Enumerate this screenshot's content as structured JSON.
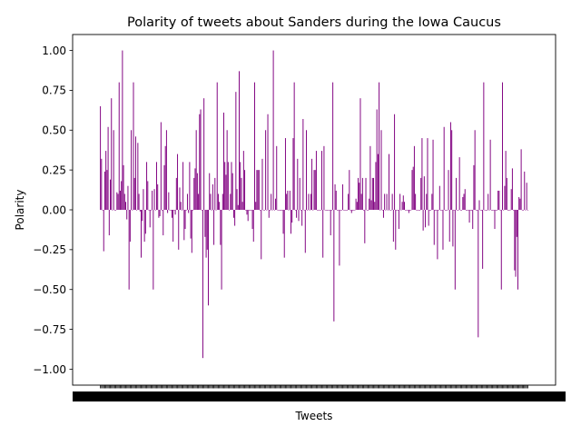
{
  "chart_data": {
    "type": "bar",
    "title": "Polarity of tweets about Sanders during the Iowa Caucus",
    "xlabel": "Tweets",
    "ylabel": "Polarity",
    "ylim": [
      -1.1,
      1.1
    ],
    "yticks": [
      "−1.00",
      "−0.75",
      "−0.50",
      "−0.25",
      "0.00",
      "0.25",
      "0.50",
      "0.75",
      "1.00"
    ],
    "grid": false,
    "legend": "none",
    "bar_color": "#800080",
    "series": [
      {
        "values": [
          0.65,
          0.32,
          0.0,
          -0.26,
          0.24,
          0.37,
          0.25,
          0.52,
          -0.16,
          0.19,
          0.7,
          0.0,
          0.5,
          0.0,
          0.0,
          0.11,
          0.1,
          0.8,
          0.12,
          0.18,
          1.0,
          0.28,
          0.1,
          0.05,
          -0.06,
          0.15,
          -0.5,
          -0.2,
          0.5,
          0.0,
          0.8,
          0.2,
          0.46,
          0.0,
          0.42,
          0.1,
          -0.01,
          -0.3,
          -0.07,
          0.13,
          -0.2,
          -0.15,
          0.3,
          0.18,
          0.0,
          -0.11,
          0.0,
          0.12,
          -0.5,
          0.13,
          0.0,
          0.3,
          0.16,
          -0.05,
          -0.04,
          0.55,
          0.0,
          -0.16,
          0.28,
          0.4,
          0.5,
          -0.02,
          0.11,
          0.0,
          0.0,
          -0.05,
          -0.2,
          0.0,
          -0.03,
          0.2,
          0.35,
          -0.25,
          0.14,
          0.05,
          0.0,
          0.3,
          -0.19,
          -0.12,
          0.0,
          0.1,
          -0.02,
          0.3,
          -0.18,
          -0.27,
          0.0,
          0.2,
          0.26,
          0.5,
          0.23,
          0.1,
          0.6,
          0.63,
          0.0,
          -0.93,
          0.7,
          -0.17,
          -0.3,
          -0.25,
          -0.6,
          0.23,
          0.1,
          0.0,
          0.16,
          -0.22,
          0.2,
          0.0,
          0.8,
          0.1,
          0.05,
          -0.22,
          -0.5,
          0.1,
          0.61,
          0.3,
          0.22,
          0.5,
          0.3,
          0.0,
          0.1,
          0.3,
          0.23,
          -0.05,
          -0.1,
          0.74,
          0.13,
          0.03,
          0.87,
          0.3,
          0.2,
          0.05,
          0.37,
          0.25,
          0.0,
          -0.03,
          -0.07,
          0.0,
          0.0,
          0.0,
          -0.12,
          -0.2,
          0.8,
          0.05,
          0.25,
          0.25,
          0.25,
          0.0,
          -0.31,
          0.32,
          0.0,
          0.0,
          0.5,
          0.0,
          0.6,
          -0.05,
          0.0,
          0.1,
          0.0,
          1.0,
          0.0,
          0.07,
          0.4,
          0.0,
          0.0,
          0.0,
          0.0,
          0.0,
          -0.15,
          -0.3,
          0.45,
          0.1,
          0.12,
          0.0,
          0.12,
          -0.15,
          -0.08,
          0.45,
          0.8,
          0.0,
          -0.05,
          0.32,
          -0.07,
          0.2,
          0.0,
          -0.1,
          0.57,
          0.0,
          -0.27,
          0.5,
          0.0,
          0.1,
          0.0,
          0.1,
          0.32,
          0.0,
          0.25,
          0.25,
          0.37,
          0.0,
          0.0,
          0.0,
          0.0,
          0.37,
          -0.3,
          0.4,
          0.0,
          0.0,
          0.0,
          0.0,
          0.0,
          -0.16,
          0.0,
          0.8,
          -0.7,
          0.16,
          0.12,
          0.0,
          0.0,
          -0.35,
          0.0,
          0.0,
          0.16,
          0.0,
          0.0,
          0.0,
          0.0,
          0.1,
          0.25,
          0.0,
          -0.02,
          0.0,
          0.0,
          0.0,
          0.07,
          0.05,
          0.2,
          0.17,
          0.7,
          0.1,
          0.2,
          0.0,
          -0.21,
          0.2,
          0.0,
          0.0,
          0.07,
          0.4,
          0.06,
          0.2,
          0.2,
          0.05,
          0.3,
          0.63,
          0.35,
          0.8,
          0.0,
          0.5,
          0.0,
          -0.05,
          0.1,
          0.0,
          0.1,
          0.0,
          0.35,
          0.0,
          0.0,
          0.1,
          -0.2,
          0.6,
          -0.25,
          0.0,
          0.0,
          -0.12,
          0.1,
          0.0,
          0.05,
          0.09,
          0.05,
          0.0,
          0.0,
          0.0,
          -0.02,
          0.0,
          0.0,
          0.25,
          0.27,
          0.4,
          0.1,
          0.0,
          0.0,
          0.0,
          0.0,
          0.2,
          0.45,
          -0.13,
          0.21,
          -0.11,
          0.1,
          0.45,
          -0.1,
          0.0,
          0.0,
          0.1,
          0.44,
          -0.22,
          0.0,
          0.0,
          -0.31,
          0.0,
          0.15,
          0.0,
          0.0,
          -0.25,
          0.52,
          0.0,
          0.0,
          0.0,
          0.25,
          -0.2,
          0.55,
          0.5,
          -0.23,
          0.0,
          -0.5,
          0.2,
          0.0,
          0.0,
          0.33,
          0.0,
          0.0,
          0.08,
          0.1,
          0.13,
          0.0,
          0.0,
          0.0,
          -0.08,
          0.0,
          0.0,
          -0.12,
          0.28,
          0.5,
          0.0,
          0.0,
          -0.8,
          0.06,
          0.0,
          0.0,
          -0.37,
          0.8,
          0.0,
          0.0,
          0.0,
          0.1,
          0.0,
          0.44,
          0.0,
          0.0,
          0.0,
          -0.12,
          0.0,
          0.0,
          0.12,
          0.12,
          0.0,
          -0.5,
          0.8,
          0.0,
          0.15,
          0.37,
          0.2,
          0.0,
          0.0,
          0.0,
          0.13,
          0.26,
          0.0,
          -0.38,
          -0.42,
          -0.17,
          -0.5,
          0.08,
          0.07,
          0.38,
          0.0,
          0.0,
          0.24,
          0.0,
          0.17,
          0.0
        ]
      }
    ]
  }
}
